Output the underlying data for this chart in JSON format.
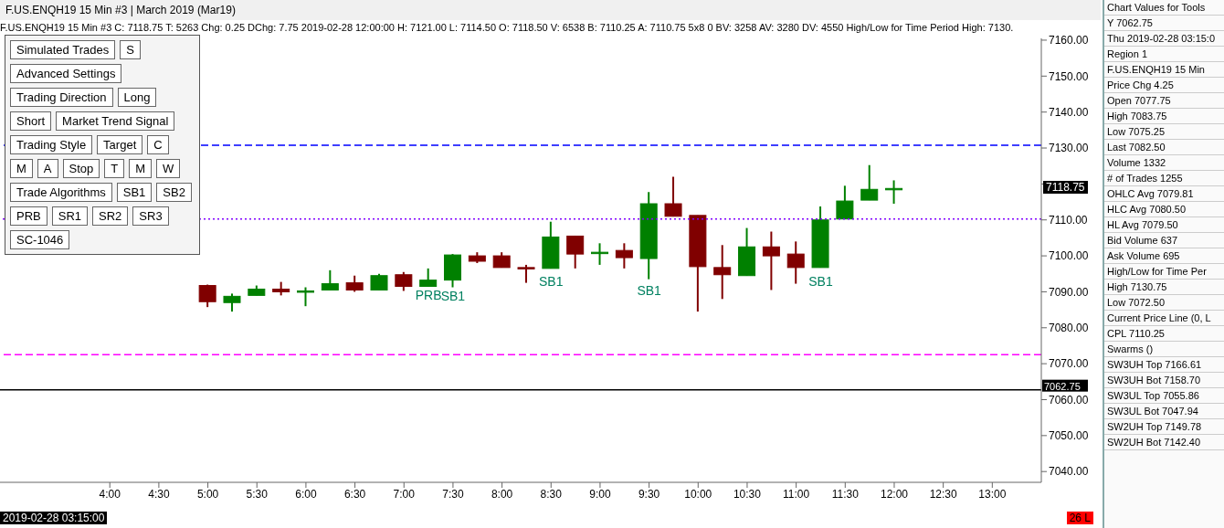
{
  "chart_data": [
    {
      "type": "candlestick",
      "title": "F.US.ENQH19  15 Min  #3 | March 2019 (Mar19)",
      "subtitle": "F.US.ENQH19  15 Min  #3  C: 7118.75  T: 5263  Chg: 0.25  DChg: 7.75  2019-02-28 12:00:00 H: 7121.00 L: 7114.50 O: 7118.50 V: 6538 B: 7110.25 A: 7110.75 5x8 0 BV: 3258 AV: 3280 DV: 4550 High/Low for Time Period  High: 7130.",
      "x": [
        5,
        5.25,
        5.5,
        5.75,
        6,
        6.25,
        6.5,
        6.75,
        7,
        7.25,
        7.5,
        7.75,
        8,
        8.25,
        8.5,
        8.75,
        9,
        9.25,
        9.5,
        9.75,
        10,
        10.25,
        10.5,
        10.75,
        11,
        11.25,
        11.5,
        11.75,
        12
      ],
      "ohlc": [
        [
          7091.75,
          7092,
          7085.75,
          7087.25
        ],
        [
          7087,
          7089.5,
          7084.5,
          7088.75
        ],
        [
          7089,
          7091.75,
          7089,
          7090.75
        ],
        [
          7090.75,
          7092.75,
          7089,
          7090
        ],
        [
          7090.25,
          7091.25,
          7086,
          7090.25
        ],
        [
          7090.5,
          7096,
          7090.5,
          7092.25
        ],
        [
          7092.5,
          7094.5,
          7090,
          7090.5
        ],
        [
          7090.5,
          7095,
          7090.5,
          7094.5
        ],
        [
          7094.75,
          7095.5,
          7090.25,
          7091.5
        ],
        [
          7091.5,
          7096.5,
          7091.5,
          7093.25
        ],
        [
          7093.25,
          7100.5,
          7091.25,
          7100.25
        ],
        [
          7100,
          7101,
          7098,
          7098.5
        ],
        [
          7100,
          7101,
          7096.75,
          7096.75
        ],
        [
          7096.75,
          7097.5,
          7092.5,
          7096.5
        ],
        [
          7096.5,
          7109.5,
          7096.5,
          7105.25
        ],
        [
          7105.5,
          7105.5,
          7096.5,
          7100.5
        ],
        [
          7101,
          7103.5,
          7097.5,
          7101
        ],
        [
          7101.5,
          7103.5,
          7096.5,
          7099.5
        ],
        [
          7099.25,
          7117.75,
          7093.5,
          7114.5
        ],
        [
          7114.5,
          7122,
          7111,
          7111
        ],
        [
          7111.25,
          7111.25,
          7084.5,
          7097
        ],
        [
          7096.75,
          7103,
          7088,
          7094.75
        ],
        [
          7094.5,
          7107.75,
          7094.5,
          7102.5
        ],
        [
          7102.5,
          7106.75,
          7090.5,
          7100
        ],
        [
          7100.5,
          7104,
          7092.25,
          7096.75
        ],
        [
          7096.75,
          7113.75,
          7096.75,
          7110
        ],
        [
          7110.25,
          7119.5,
          7110.25,
          7115.25
        ],
        [
          7115.5,
          7125.25,
          7115.5,
          7118.5
        ],
        [
          7118.5,
          7121,
          7114.5,
          7118.75
        ]
      ],
      "colors": [
        "#800000",
        "#008000",
        "#008000",
        "#800000",
        "#008000",
        "#008000",
        "#800000",
        "#008000",
        "#800000",
        "#008000",
        "#008000",
        "#800000",
        "#800000",
        "#800000",
        "#008000",
        "#800000",
        "#008000",
        "#800000",
        "#008000",
        "#800000",
        "#800000",
        "#800000",
        "#008000",
        "#800000",
        "#800000",
        "#008000",
        "#008000",
        "#008000",
        "#008000"
      ],
      "xlim": [
        2.88,
        13.5
      ],
      "xticks": [
        {
          "value": 4,
          "label": "4:00"
        },
        {
          "value": 4.5,
          "label": "4:30"
        },
        {
          "value": 5,
          "label": "5:00"
        },
        {
          "value": 5.5,
          "label": "5:30"
        },
        {
          "value": 6,
          "label": "6:00"
        },
        {
          "value": 6.5,
          "label": "6:30"
        },
        {
          "value": 7,
          "label": "7:00"
        },
        {
          "value": 7.5,
          "label": "7:30"
        },
        {
          "value": 8,
          "label": "8:00"
        },
        {
          "value": 8.5,
          "label": "8:30"
        },
        {
          "value": 9,
          "label": "9:00"
        },
        {
          "value": 9.5,
          "label": "9:30"
        },
        {
          "value": 10,
          "label": "10:00"
        },
        {
          "value": 10.5,
          "label": "10:30"
        },
        {
          "value": 11,
          "label": "11:00"
        },
        {
          "value": 11.5,
          "label": "11:30"
        },
        {
          "value": 12,
          "label": "12:00"
        },
        {
          "value": 12.5,
          "label": "12:30"
        },
        {
          "value": 13,
          "label": "13:00"
        }
      ],
      "ylim": [
        7037,
        7160.5
      ],
      "yticks": [
        {
          "value": 7040,
          "label": "7040.00"
        },
        {
          "value": 7050,
          "label": "7050.00"
        },
        {
          "value": 7060,
          "label": "7060.00"
        },
        {
          "value": 7070,
          "label": "7070.00"
        },
        {
          "value": 7080,
          "label": "7080.00"
        },
        {
          "value": 7090,
          "label": "7090.00"
        },
        {
          "value": 7100,
          "label": "7100.00"
        },
        {
          "value": 7110,
          "label": "7110.00"
        },
        {
          "value": 7120,
          "label": null
        },
        {
          "value": 7130,
          "label": "7130.00"
        },
        {
          "value": 7140,
          "label": "7140.00"
        },
        {
          "value": 7150,
          "label": "7150.00"
        },
        {
          "value": 7160,
          "label": "7160.00"
        }
      ],
      "ref_lines": [
        {
          "axis": "y",
          "value": 7130.75,
          "label": null,
          "color": "#0000ff",
          "line_style": "dashed"
        },
        {
          "axis": "y",
          "value": 7072.5,
          "label": null,
          "color": "#ff00ff",
          "line_style": "dashed"
        },
        {
          "axis": "y",
          "value": 7110.25,
          "label": null,
          "color": "#8000ff",
          "line_style": "dotted"
        },
        {
          "axis": "y",
          "value": 7062.75,
          "label": "7062.75",
          "color": "#000000",
          "line_style": "solid"
        }
      ],
      "annotations": [
        {
          "text": "PRB",
          "x": 7.25,
          "y": 7091.5
        },
        {
          "text": "SB1",
          "x": 7.5,
          "y": 7091.25
        },
        {
          "text": "SB1",
          "x": 8.5,
          "y": 7095.5
        },
        {
          "text": "SB1",
          "x": 9.5,
          "y": 7093
        },
        {
          "text": "SB1",
          "x": 11.25,
          "y": 7095.5
        },
        "7118.75",
        "2019-02-28  03:15:00",
        "26 L"
      ],
      "legend": false
    },
    {
      "type": "other",
      "annotations": [
        "Simulated Trades",
        "S",
        "Advanced Settings",
        "Trading Direction",
        "Long",
        "Short",
        "Market Trend Signal",
        "Trading Style",
        "Target",
        "C",
        "M",
        "A",
        "Stop",
        "T",
        "M",
        "W",
        "Trade Algorithms",
        "SB1",
        "SB2",
        "PRB",
        "SR1",
        "SR2",
        "SR3",
        "SC-1046"
      ]
    },
    {
      "type": "other",
      "annotations": [
        "Chart Values for Tools",
        "Y  7062.75",
        "Thu 2019-02-28  03:15:0",
        "Region 1",
        "F.US.ENQH19  15 Min",
        "Price Chg  4.25",
        "Open  7077.75",
        "High  7083.75",
        "Low  7075.25",
        "Last  7082.50",
        "Volume  1332",
        "# of Trades  1255",
        "OHLC Avg  7079.81",
        "HLC Avg  7080.50",
        "HL Avg  7079.50",
        "Bid Volume  637",
        "Ask Volume  695",
        "High/Low for Time Per",
        "High  7130.75",
        "Low  7072.50",
        "Current Price Line (0, L",
        "CPL  7110.25",
        "Swarms ()",
        "SW3UH Top  7166.61",
        "SW3UH Bot  7158.70",
        "SW3UL Top  7055.86",
        "SW3UL Bot  7047.94",
        "SW2UH Top  7149.78",
        "SW2UH Bot  7142.40"
      ]
    }
  ]
}
